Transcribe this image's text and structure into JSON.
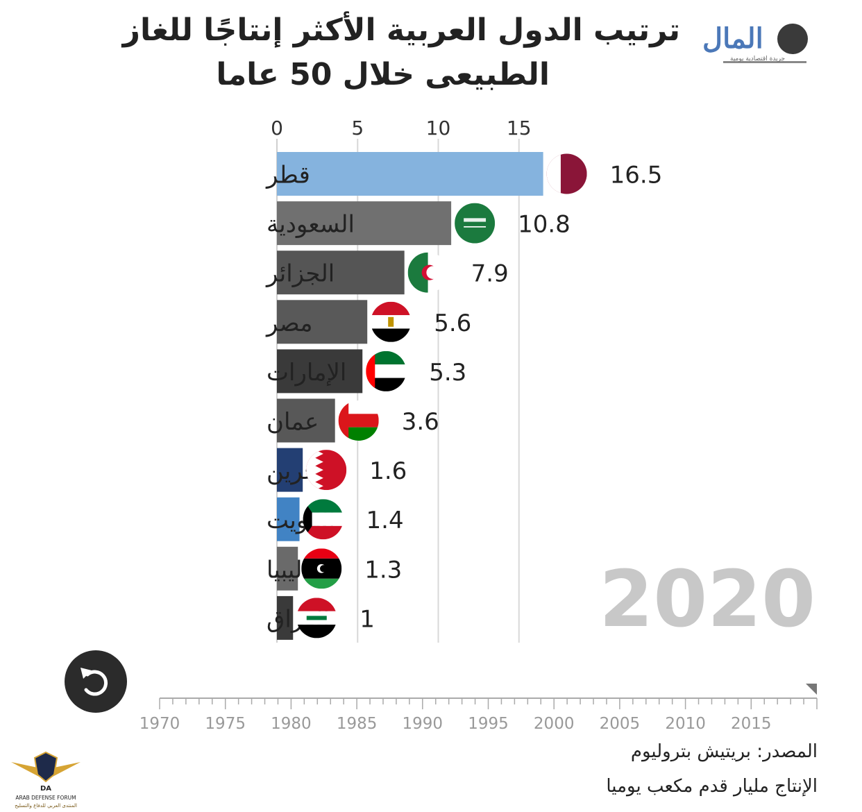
{
  "title_line1": "ترتيب الدول العربية الأكثر إنتاجًا للغاز",
  "title_line2": "الطبيعى خلال 50 عاما",
  "logo": {
    "text": "المال",
    "subtitle": "جريدة اقتصادية يومية",
    "icon": "globe-icon"
  },
  "year_label": "2020",
  "replay_icon": "replay-icon",
  "source_line1": "المصدر: بريتيش بتروليوم",
  "source_line2": "الإنتاج مليار قدم مكعب يوميا",
  "badge": {
    "text": "ARAB DEFENSE FORUM",
    "subtext": "المنتدى العربي للدفاع والتسليح",
    "initials": "DA"
  },
  "chart_data": {
    "type": "bar",
    "orientation": "horizontal",
    "categories": [
      "قطر",
      "السعودية",
      "الجزائر",
      "مصر",
      "الإمارات",
      "عمان",
      "البحرين",
      "الكويت",
      "ليبيا",
      "العراق"
    ],
    "values": [
      16.5,
      10.8,
      7.9,
      5.6,
      5.3,
      3.6,
      1.6,
      1.4,
      1.3,
      1
    ],
    "value_labels": [
      "16.5",
      "10.8",
      "7.9",
      "5.6",
      "5.3",
      "3.6",
      "1.6",
      "1.4",
      "1.3",
      "1"
    ],
    "flags": [
      "qatar-flag-icon",
      "saudi-flag-icon",
      "algeria-flag-icon",
      "egypt-flag-icon",
      "uae-flag-icon",
      "oman-flag-icon",
      "bahrain-flag-icon",
      "kuwait-flag-icon",
      "libya-flag-icon",
      "iraq-flag-icon"
    ],
    "bar_colors": [
      "#85b3de",
      "#707070",
      "#555555",
      "#595959",
      "#3a3a3a",
      "#585858",
      "#233f73",
      "#4183c4",
      "#6a6a6a",
      "#3a3a3a"
    ],
    "xlim": [
      0,
      16.5
    ],
    "xticks": [
      0,
      5,
      10,
      15
    ],
    "grid": true,
    "timeline": {
      "start": 1970,
      "end": 2020,
      "current": 2020,
      "ticks": [
        1970,
        1975,
        1980,
        1985,
        1990,
        1995,
        2000,
        2005,
        2010,
        2015
      ]
    }
  }
}
